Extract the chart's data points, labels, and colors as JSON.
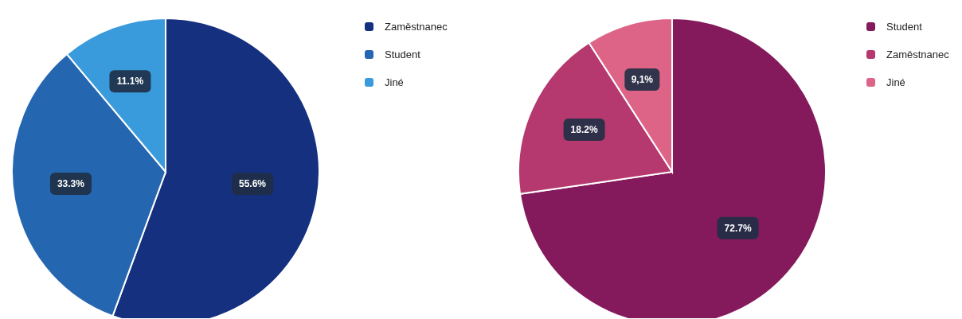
{
  "chart_data": [
    {
      "type": "pie",
      "categories": [
        "Zaměstnanec",
        "Student",
        "Jiné"
      ],
      "values": [
        55.6,
        33.3,
        11.1
      ],
      "colors": [
        "#14307e",
        "#2566b0",
        "#3a9bdc"
      ],
      "value_labels": [
        "55.6%",
        "33.3%",
        "11.1%"
      ],
      "legend": "top right"
    },
    {
      "type": "pie",
      "categories": [
        "Student",
        "Zaměstnanec",
        "Jiné"
      ],
      "values": [
        72.7,
        18.2,
        9.1
      ],
      "colors": [
        "#841a5c",
        "#b5386e",
        "#dd6486"
      ],
      "value_labels": [
        "72.7%",
        "18.2%",
        "9,1%"
      ],
      "legend": "top right"
    }
  ]
}
